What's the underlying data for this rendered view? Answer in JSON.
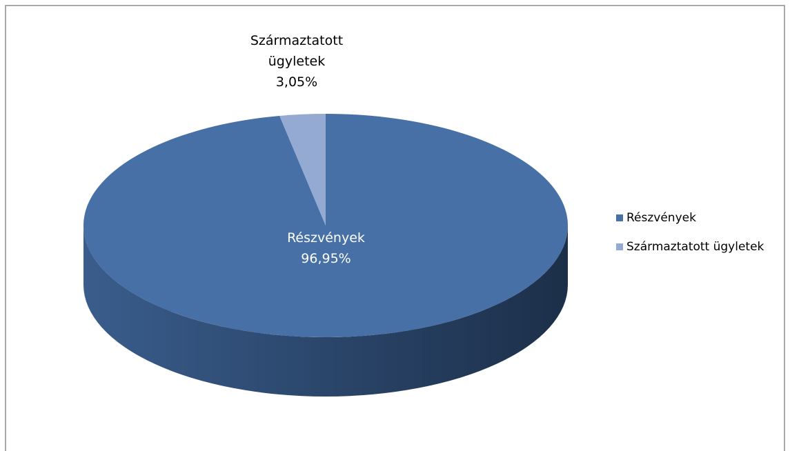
{
  "chart_data": {
    "type": "pie",
    "categories": [
      "Részvények",
      "Származtatott ügyletek"
    ],
    "values": [
      96.95,
      3.05
    ],
    "value_labels": [
      "96,95%",
      "3,05%"
    ],
    "colors": [
      "#4770a6",
      "#95aad3"
    ],
    "legend": "right"
  }
}
